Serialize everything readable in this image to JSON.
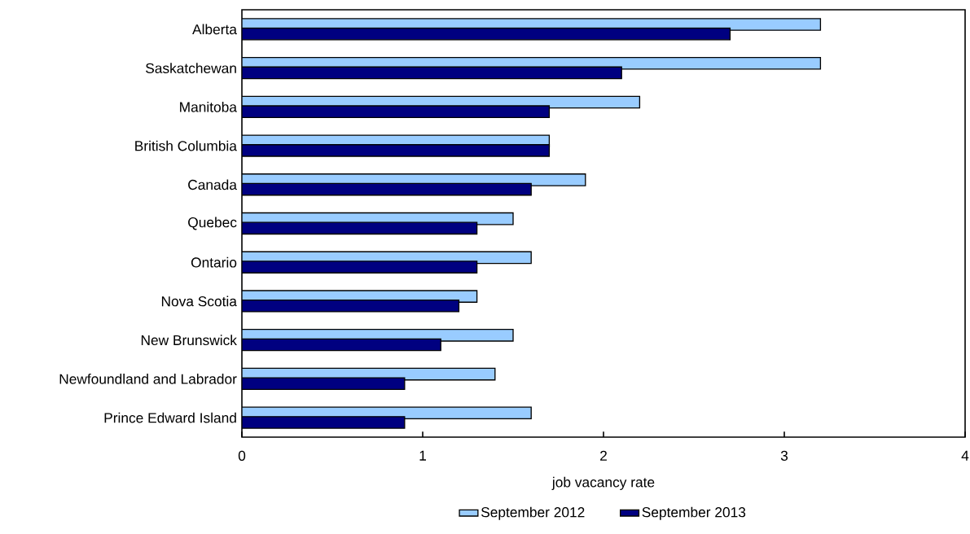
{
  "chart_data": {
    "type": "bar",
    "orientation": "horizontal",
    "categories": [
      "Alberta",
      "Saskatchewan",
      "Manitoba",
      "British Columbia",
      "Canada",
      "Quebec",
      "Ontario",
      "Nova Scotia",
      "New Brunswick",
      "Newfoundland and Labrador",
      "Prince Edward Island"
    ],
    "series": [
      {
        "name": "September 2012",
        "color": "#99ccff",
        "values": [
          3.2,
          3.2,
          2.2,
          1.7,
          1.9,
          1.5,
          1.6,
          1.3,
          1.5,
          1.4,
          1.6
        ]
      },
      {
        "name": "September 2013",
        "color": "#000080",
        "values": [
          2.7,
          2.1,
          1.7,
          1.7,
          1.6,
          1.3,
          1.3,
          1.2,
          1.1,
          0.9,
          0.9
        ]
      }
    ],
    "xlim": [
      0,
      4
    ],
    "xticks": [
      0,
      1,
      2,
      3,
      4
    ],
    "xlabel": "job vacancy rate",
    "legend": "bottom"
  }
}
